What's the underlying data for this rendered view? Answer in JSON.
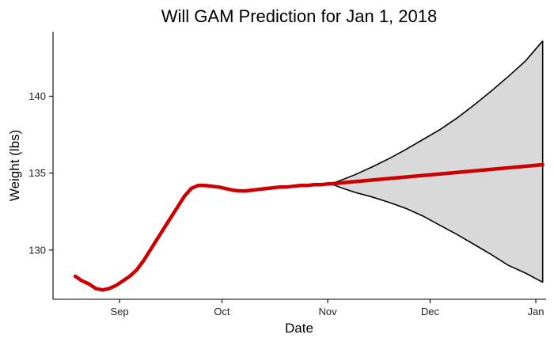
{
  "chart_data": {
    "type": "line",
    "title": "Will GAM Prediction for Jan 1, 2018",
    "xlabel": "Date",
    "ylabel": "Weight (lbs)",
    "x_unit": "days since 2017-08-01",
    "xlim": [
      11.5,
      156
    ],
    "ylim": [
      126.8,
      144.2
    ],
    "x_ticks": [
      {
        "label": "Sep",
        "value": 31
      },
      {
        "label": "Oct",
        "value": 61
      },
      {
        "label": "Nov",
        "value": 92
      },
      {
        "label": "Dec",
        "value": 122
      },
      {
        "label": "Jan",
        "value": 153
      }
    ],
    "y_ticks": [
      130,
      135,
      140
    ],
    "colors": {
      "fitted": "#cc0000",
      "band_fill": "#d9d9d9",
      "band_edge": "#000000",
      "axis": "#000000"
    },
    "series": [
      {
        "name": "fitted",
        "x": [
          18,
          20,
          22,
          24,
          26,
          28,
          30,
          32,
          34,
          36,
          38,
          40,
          42,
          44,
          46,
          48,
          50,
          52,
          54,
          56,
          58,
          60,
          62,
          64,
          66,
          68,
          70,
          72,
          74,
          76,
          78,
          80,
          82,
          84,
          86,
          88,
          90,
          92,
          93
        ],
        "y": [
          128.3,
          128.0,
          127.8,
          127.5,
          127.4,
          127.5,
          127.7,
          128.0,
          128.3,
          128.7,
          129.3,
          130.0,
          130.7,
          131.4,
          132.1,
          132.8,
          133.5,
          134.0,
          134.2,
          134.2,
          134.15,
          134.1,
          134.0,
          133.9,
          133.85,
          133.85,
          133.9,
          133.95,
          134.0,
          134.05,
          134.1,
          134.1,
          134.15,
          134.2,
          134.2,
          134.25,
          134.25,
          134.3,
          134.3
        ]
      },
      {
        "name": "forecast",
        "x": [
          93,
          100,
          110,
          120,
          130,
          140,
          150,
          155
        ],
        "y": [
          134.3,
          134.45,
          134.65,
          134.85,
          135.05,
          135.25,
          135.45,
          135.55
        ]
      },
      {
        "name": "upper_bound",
        "x": [
          93,
          96,
          100,
          105,
          110,
          115,
          120,
          125,
          130,
          135,
          140,
          145,
          150,
          155
        ],
        "y": [
          134.3,
          134.55,
          134.9,
          135.4,
          135.95,
          136.55,
          137.2,
          137.85,
          138.6,
          139.45,
          140.35,
          141.3,
          142.3,
          143.6
        ]
      },
      {
        "name": "lower_bound",
        "x": [
          93,
          96,
          100,
          105,
          110,
          115,
          120,
          125,
          130,
          135,
          140,
          145,
          150,
          155
        ],
        "y": [
          134.3,
          134.05,
          133.75,
          133.45,
          133.1,
          132.7,
          132.2,
          131.6,
          131.0,
          130.35,
          129.7,
          129.0,
          128.5,
          127.9
        ]
      }
    ]
  }
}
